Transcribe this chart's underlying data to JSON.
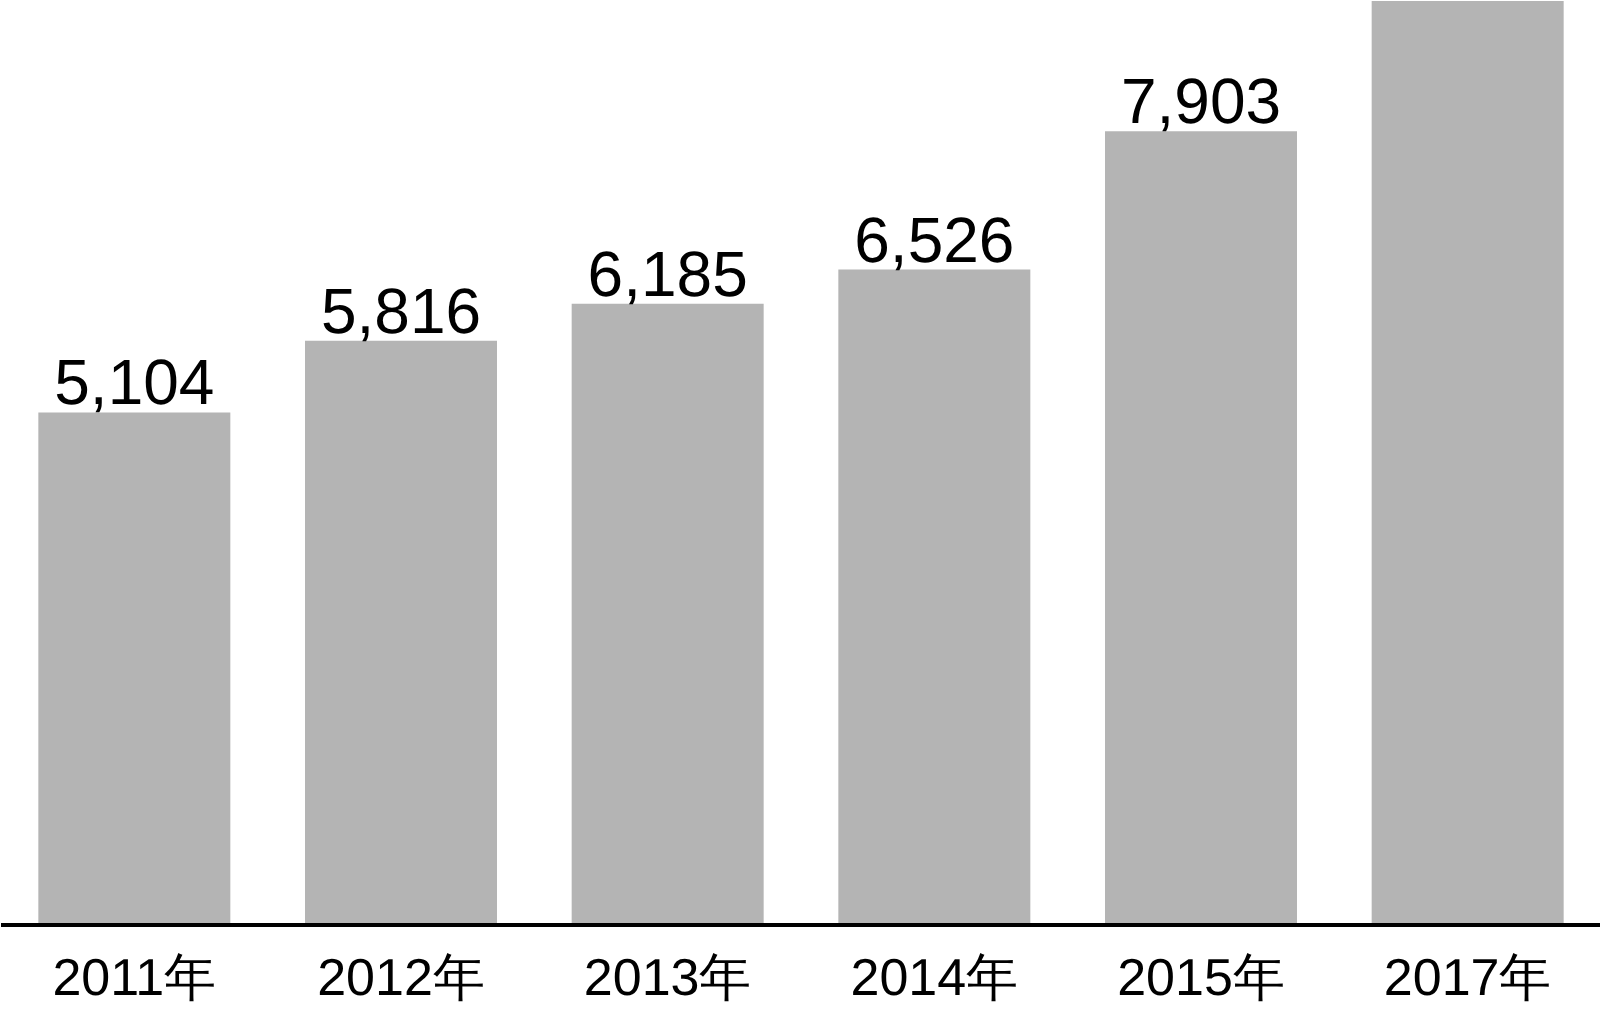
{
  "chart_data": {
    "type": "bar",
    "categories": [
      "2011年",
      "2012年",
      "2013年",
      "2014年",
      "2015年",
      "2017年"
    ],
    "values": [
      5104,
      5816,
      6185,
      6526,
      7903,
      9200
    ],
    "value_labels": [
      "5,104",
      "5,816",
      "6,185",
      "6,526",
      "7,903",
      null
    ],
    "color": "#b4b4b4",
    "ylim": [
      0,
      9200
    ],
    "grid": false,
    "tick_labels": "x"
  }
}
